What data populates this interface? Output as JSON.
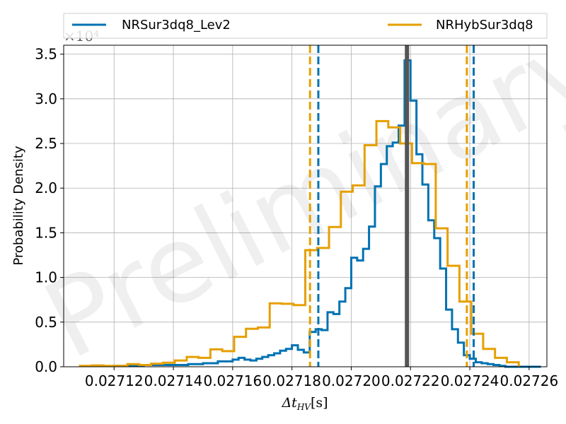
{
  "chart_data": {
    "type": "histogram",
    "watermark": "Preliminary",
    "xlabel": "Δt",
    "xlabel_sub": "HV",
    "xlabel_unit": "[s]",
    "ylabel": "Probability Density",
    "y_offset_text": "×10⁴",
    "xlim": [
      0.027103,
      0.027266
    ],
    "ylim": [
      0,
      36000
    ],
    "x_ticks": [
      0.02712,
      0.02714,
      0.02716,
      0.02718,
      0.0272,
      0.02722,
      0.02724,
      0.02726
    ],
    "x_tick_labels": [
      "0.02712",
      "0.02714",
      "0.02716",
      "0.02718",
      "0.02720",
      "0.02722",
      "0.02724",
      "0.02726"
    ],
    "y_ticks": [
      0,
      5000,
      10000,
      15000,
      20000,
      25000,
      30000,
      35000
    ],
    "y_tick_labels": [
      "0.0",
      "0.5",
      "1.0",
      "1.5",
      "2.0",
      "2.5",
      "3.0",
      "3.5"
    ],
    "grid": true,
    "legend_position": "top, above plot",
    "true_value": 0.0272188,
    "series": [
      {
        "name": "NRSur3dq8_Lev2",
        "color": "#0072b2",
        "edges": [
          0.02712,
          0.027125,
          0.02713,
          0.027135,
          0.02714,
          0.027145,
          0.02715,
          0.027155,
          0.02716,
          0.027162,
          0.027164,
          0.027166,
          0.027168,
          0.02717,
          0.027172,
          0.027174,
          0.027176,
          0.027178,
          0.02718,
          0.027182,
          0.027184,
          0.027186,
          0.027188,
          0.02719,
          0.027192,
          0.027194,
          0.027196,
          0.027198,
          0.0272,
          0.027202,
          0.027204,
          0.027206,
          0.027208,
          0.02721,
          0.027212,
          0.027214,
          0.027216,
          0.027218,
          0.02722,
          0.027222,
          0.027224,
          0.027226,
          0.027228,
          0.02723,
          0.027232,
          0.027234,
          0.027236,
          0.027238,
          0.02724,
          0.027242,
          0.027244,
          0.027246,
          0.027248,
          0.02725,
          0.027252,
          0.027254,
          0.027256,
          0.027258,
          0.02726,
          0.027262,
          0.027264
        ],
        "values": [
          100,
          100,
          200,
          200,
          200,
          300,
          400,
          600,
          800,
          1000,
          800,
          700,
          900,
          1100,
          1300,
          1500,
          1800,
          2000,
          2400,
          1900,
          1600,
          3900,
          4200,
          4100,
          6100,
          5900,
          7300,
          8800,
          12200,
          11900,
          13200,
          15700,
          20200,
          22700,
          24700,
          25100,
          27000,
          34300,
          29800,
          23800,
          20400,
          16400,
          14400,
          11000,
          6400,
          4200,
          2700,
          1300,
          900,
          500,
          400,
          300,
          200,
          100,
          0,
          0,
          0,
          0,
          0,
          0
        ],
        "ci_90": [
          0.0271889,
          0.0272413
        ]
      },
      {
        "name": "NRHybSur3dq8",
        "color": "#e69f00",
        "edges": [
          0.0271085,
          0.0271125,
          0.0271165,
          0.0271205,
          0.0271245,
          0.0271285,
          0.0271325,
          0.0271365,
          0.0271405,
          0.0271445,
          0.0271485,
          0.0271525,
          0.0271565,
          0.0271605,
          0.0271645,
          0.0271685,
          0.0271725,
          0.0271765,
          0.0271805,
          0.0271845,
          0.0271885,
          0.0271925,
          0.0271965,
          0.0272005,
          0.0272045,
          0.0272085,
          0.0272125,
          0.0272165,
          0.0272205,
          0.0272245,
          0.0272285,
          0.0272325,
          0.0272365,
          0.0272405,
          0.0272445,
          0.0272485,
          0.0272525,
          0.0272565
        ],
        "values": [
          100,
          150,
          100,
          100,
          300,
          200,
          350,
          450,
          700,
          1100,
          1000,
          1950,
          1750,
          3350,
          4250,
          4400,
          7100,
          7050,
          6900,
          13050,
          13300,
          15650,
          19600,
          20300,
          24800,
          27500,
          26800,
          25000,
          22800,
          22700,
          15500,
          11300,
          7300,
          3700,
          2000,
          1000,
          500
        ],
        "ci_90": [
          0.0271861,
          0.027239
        ]
      }
    ]
  }
}
